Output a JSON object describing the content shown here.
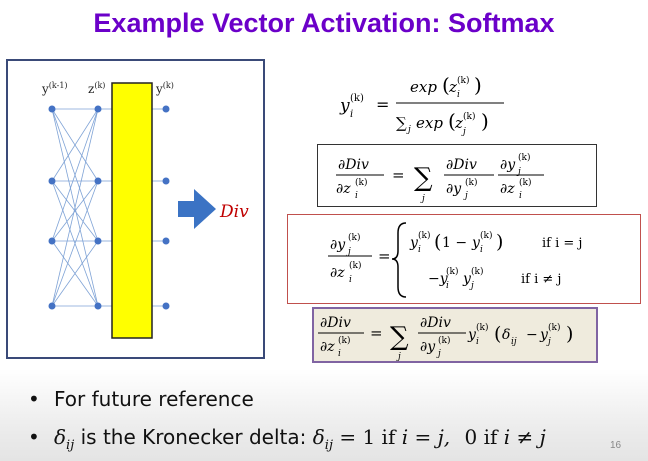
{
  "slide": {
    "title": "Example Vector Activation: Softmax",
    "page_number": "16"
  },
  "diagram": {
    "label_input": "y",
    "label_input_sup": "(k-1)",
    "label_pre": "z",
    "label_pre_sup": "(k)",
    "label_out": "y",
    "label_out_sup": "(k)",
    "div_label": "Div",
    "layer_color": "#ffff00",
    "arrow_color": "#3b73c4",
    "div_color": "#c00000"
  },
  "equations": {
    "softmax_y": "y",
    "softmax_sub": "i",
    "softmax_sup": "(k)",
    "softmax_num": "exp",
    "softmax_den_sum": "∑",
    "softmax_den_sub": "j",
    "softmax_den_exp": "exp",
    "eq2_partial": "∂Div",
    "eq2_var": "z",
    "eq3_if1": "if i = j",
    "eq3_if2": "if i ≠ j",
    "eq3_one": "1 −",
    "eq4_delta": "δ",
    "eq4_delta_sub": "ij"
  },
  "bullets": {
    "b1": "For future reference",
    "b2_pre": "is the Kronecker delta:",
    "b2_delta": "δ",
    "b2_sub": "ij",
    "b2_eq": "= 1  if",
    "b2_ij": "i = j,",
    "b2_zero": "0 if",
    "b2_ineq": "i ≠ j"
  }
}
